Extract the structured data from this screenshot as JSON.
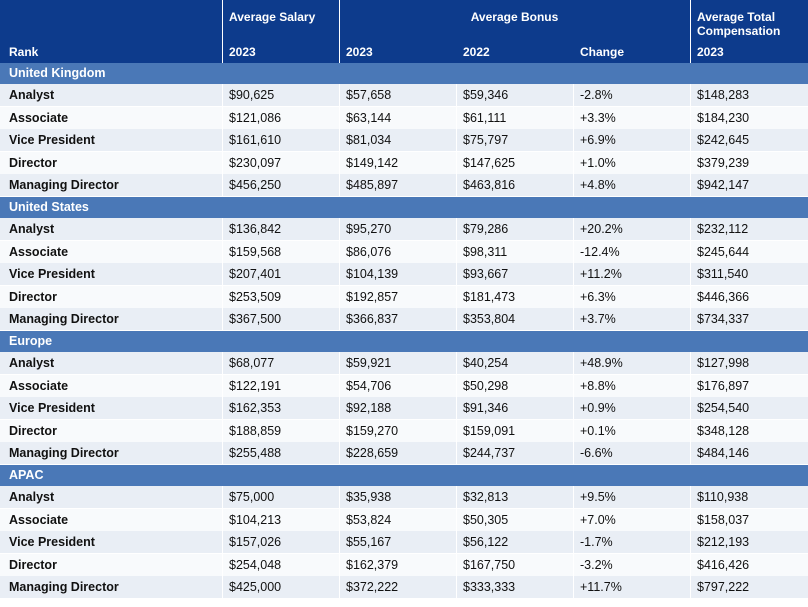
{
  "header": {
    "rank": "Rank",
    "avg_salary": "Average Salary",
    "avg_bonus": "Average Bonus",
    "avg_total_line1": "Average Total",
    "avg_total_line2": "Compensation",
    "sub": [
      "2023",
      "2023",
      "2022",
      "Change",
      "2023"
    ]
  },
  "regions": [
    {
      "name": "United Kingdom",
      "rows": [
        {
          "rank": "Analyst",
          "salary_2023": "$90,625",
          "bonus_2023": "$57,658",
          "bonus_2022": "$59,346",
          "change": "-2.8%",
          "total_2023": "$148,283"
        },
        {
          "rank": "Associate",
          "salary_2023": "$121,086",
          "bonus_2023": "$63,144",
          "bonus_2022": "$61,111",
          "change": "+3.3%",
          "total_2023": "$184,230"
        },
        {
          "rank": "Vice President",
          "salary_2023": "$161,610",
          "bonus_2023": "$81,034",
          "bonus_2022": "$75,797",
          "change": "+6.9%",
          "total_2023": "$242,645"
        },
        {
          "rank": "Director",
          "salary_2023": "$230,097",
          "bonus_2023": "$149,142",
          "bonus_2022": "$147,625",
          "change": "+1.0%",
          "total_2023": "$379,239"
        },
        {
          "rank": "Managing Director",
          "salary_2023": "$456,250",
          "bonus_2023": "$485,897",
          "bonus_2022": "$463,816",
          "change": "+4.8%",
          "total_2023": "$942,147"
        }
      ]
    },
    {
      "name": "United States",
      "rows": [
        {
          "rank": "Analyst",
          "salary_2023": "$136,842",
          "bonus_2023": "$95,270",
          "bonus_2022": "$79,286",
          "change": "+20.2%",
          "total_2023": "$232,112"
        },
        {
          "rank": "Associate",
          "salary_2023": "$159,568",
          "bonus_2023": "$86,076",
          "bonus_2022": "$98,311",
          "change": "-12.4%",
          "total_2023": "$245,644"
        },
        {
          "rank": "Vice President",
          "salary_2023": "$207,401",
          "bonus_2023": "$104,139",
          "bonus_2022": "$93,667",
          "change": "+11.2%",
          "total_2023": "$311,540"
        },
        {
          "rank": "Director",
          "salary_2023": "$253,509",
          "bonus_2023": "$192,857",
          "bonus_2022": "$181,473",
          "change": "+6.3%",
          "total_2023": "$446,366"
        },
        {
          "rank": "Managing Director",
          "salary_2023": "$367,500",
          "bonus_2023": "$366,837",
          "bonus_2022": "$353,804",
          "change": "+3.7%",
          "total_2023": "$734,337"
        }
      ]
    },
    {
      "name": "Europe",
      "rows": [
        {
          "rank": "Analyst",
          "salary_2023": "$68,077",
          "bonus_2023": "$59,921",
          "bonus_2022": "$40,254",
          "change": "+48.9%",
          "total_2023": "$127,998"
        },
        {
          "rank": "Associate",
          "salary_2023": "$122,191",
          "bonus_2023": "$54,706",
          "bonus_2022": "$50,298",
          "change": "+8.8%",
          "total_2023": "$176,897"
        },
        {
          "rank": "Vice President",
          "salary_2023": "$162,353",
          "bonus_2023": "$92,188",
          "bonus_2022": "$91,346",
          "change": "+0.9%",
          "total_2023": "$254,540"
        },
        {
          "rank": "Director",
          "salary_2023": "$188,859",
          "bonus_2023": "$159,270",
          "bonus_2022": "$159,091",
          "change": "+0.1%",
          "total_2023": "$348,128"
        },
        {
          "rank": "Managing Director",
          "salary_2023": "$255,488",
          "bonus_2023": "$228,659",
          "bonus_2022": "$244,737",
          "change": "-6.6%",
          "total_2023": "$484,146"
        }
      ]
    },
    {
      "name": "APAC",
      "rows": [
        {
          "rank": "Analyst",
          "salary_2023": "$75,000",
          "bonus_2023": "$35,938",
          "bonus_2022": "$32,813",
          "change": "+9.5%",
          "total_2023": "$110,938"
        },
        {
          "rank": "Associate",
          "salary_2023": "$104,213",
          "bonus_2023": "$53,824",
          "bonus_2022": "$50,305",
          "change": "+7.0%",
          "total_2023": "$158,037"
        },
        {
          "rank": "Vice President",
          "salary_2023": "$157,026",
          "bonus_2023": "$55,167",
          "bonus_2022": "$56,122",
          "change": "-1.7%",
          "total_2023": "$212,193"
        },
        {
          "rank": "Director",
          "salary_2023": "$254,048",
          "bonus_2023": "$162,379",
          "bonus_2022": "$167,750",
          "change": "-3.2%",
          "total_2023": "$416,426"
        },
        {
          "rank": "Managing Director",
          "salary_2023": "$425,000",
          "bonus_2023": "$372,222",
          "bonus_2022": "$333,333",
          "change": "+11.7%",
          "total_2023": "$797,222"
        }
      ]
    }
  ],
  "colors": {
    "header_bg": "#0d3b8c",
    "region_bg": "#4a78b7",
    "row_odd_bg": "#e9eef5",
    "row_even_bg": "#f8fafc"
  }
}
